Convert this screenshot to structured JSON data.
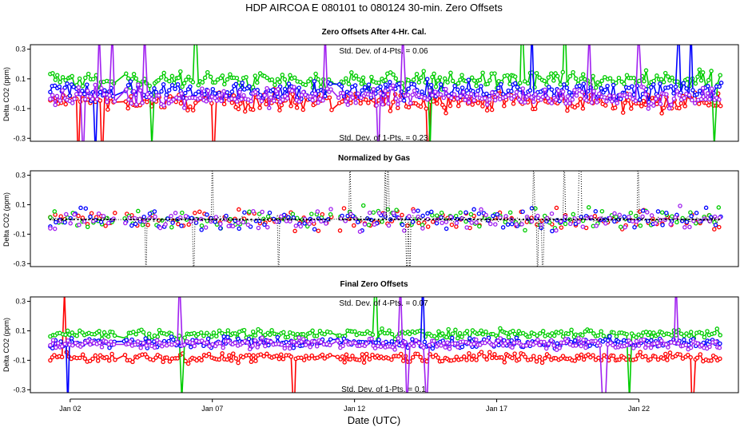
{
  "chart_data": {
    "type": "line",
    "title": "HDP    AIRCOA E    080101 to 080124   30-min. Zero Offsets",
    "xlabel": "Date (UTC)",
    "x_tick_labels": [
      "Jan 02",
      "Jan 07",
      "Jan 12",
      "Jan 17",
      "Jan 22"
    ],
    "x_tick_days": [
      2,
      7,
      12,
      17,
      22
    ],
    "xlim_days": [
      0.6,
      25.5
    ],
    "series_colors": {
      "gas1": "#ff0000",
      "gas2": "#00cc00",
      "gas3": "#0000ff",
      "gas4": "#a020f0",
      "reference": "#000000"
    },
    "panels": [
      {
        "title": "Zero Offsets After 4-Hr. Cal.",
        "ylabel": "Delta CO2 (ppm)",
        "ylim": [
          -0.32,
          0.33
        ],
        "y_ticks": [
          -0.3,
          -0.1,
          0.1,
          0.3
        ],
        "y_tick_labels": [
          "-0.3",
          "-0.1",
          "0.1",
          "0.3"
        ],
        "annotations": [
          "Std. Dev. of 4-Pts. = 0.06",
          "Std. Dev. of 1-Pts. = 0.23"
        ],
        "series": [
          {
            "name": "gas1",
            "baseline": -0.05,
            "spread": 0.09
          },
          {
            "name": "gas2",
            "baseline": 0.09,
            "spread": 0.09
          },
          {
            "name": "gas3",
            "baseline": 0.02,
            "spread": 0.09
          },
          {
            "name": "gas4",
            "baseline": -0.02,
            "spread": 0.09
          }
        ]
      },
      {
        "title": "Normalized by Gas",
        "ylabel": "Delta CO2 (ppm)",
        "ylim": [
          -0.32,
          0.33
        ],
        "y_ticks": [
          -0.3,
          -0.1,
          0.1,
          0.3
        ],
        "y_tick_labels": [
          "-0.3",
          "-0.1",
          "0.1",
          "0.3"
        ],
        "annotations": [],
        "series": [
          {
            "name": "gas1",
            "baseline": 0.0,
            "spread": 0.1
          },
          {
            "name": "gas2",
            "baseline": 0.0,
            "spread": 0.1
          },
          {
            "name": "gas3",
            "baseline": 0.0,
            "spread": 0.1
          },
          {
            "name": "gas4",
            "baseline": 0.0,
            "spread": 0.1
          },
          {
            "name": "reference",
            "baseline": 0.0,
            "spread": 0.03
          }
        ]
      },
      {
        "title": "Final Zero Offsets",
        "ylabel": "Delta CO2 (ppm)",
        "ylim": [
          -0.32,
          0.33
        ],
        "y_ticks": [
          -0.3,
          -0.1,
          0.1,
          0.3
        ],
        "y_tick_labels": [
          "-0.3",
          "-0.1",
          "0.1",
          "0.3"
        ],
        "annotations": [
          "Std. Dev. of 4-Pts. = 0.07",
          "Std. Dev. of 1-Pts. = 0.1"
        ],
        "series": [
          {
            "name": "gas1",
            "baseline": -0.08,
            "spread": 0.05
          },
          {
            "name": "gas2",
            "baseline": 0.08,
            "spread": 0.05
          },
          {
            "name": "gas3",
            "baseline": 0.02,
            "spread": 0.05
          },
          {
            "name": "gas4",
            "baseline": 0.01,
            "spread": 0.05
          }
        ]
      }
    ]
  }
}
